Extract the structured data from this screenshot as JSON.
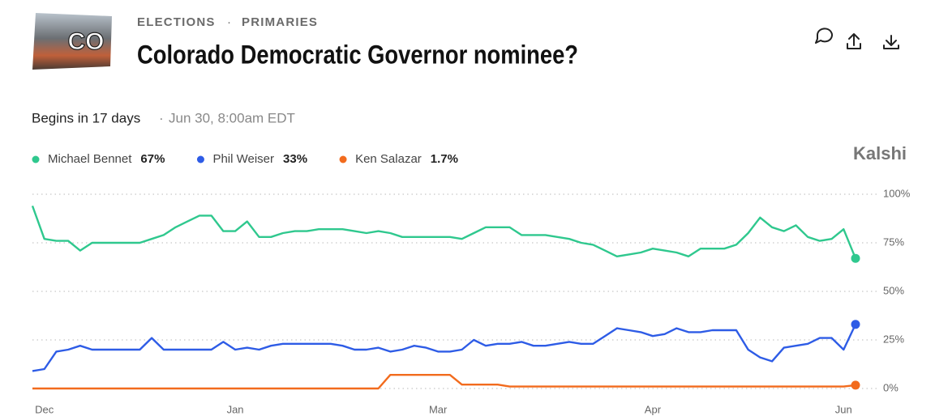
{
  "header": {
    "category": "ELECTIONS",
    "subcategory": "PRIMARIES",
    "title": "Colorado Democratic Governor nominee?",
    "image_label": "CO",
    "begins": "Begins in 17 days",
    "date": "Jun 30, 8:00am EDT",
    "brand": "Kalshi"
  },
  "chart_data": {
    "type": "line",
    "categories": [
      null,
      "Dec",
      null,
      null,
      null,
      null,
      null,
      null,
      null,
      null,
      null,
      null,
      null,
      null,
      null,
      null,
      null,
      "Jan",
      null,
      null,
      null,
      null,
      null,
      null,
      null,
      null,
      null,
      null,
      null,
      null,
      null,
      null,
      null,
      null,
      "Mar",
      null,
      null,
      null,
      null,
      null,
      null,
      null,
      null,
      null,
      null,
      null,
      null,
      null,
      null,
      null,
      null,
      null,
      "Apr",
      null,
      null,
      null,
      null,
      null,
      null,
      null,
      null,
      null,
      null,
      null,
      null,
      null,
      null,
      null,
      "Jun",
      null
    ],
    "series": [
      {
        "name": "Michael Bennet",
        "legend_value": "67%",
        "color": "#2fc88e",
        "values": [
          94,
          77,
          76,
          76,
          71,
          75,
          75,
          75,
          75,
          75,
          77,
          79,
          83,
          86,
          89,
          89,
          81,
          81,
          86,
          78,
          78,
          80,
          81,
          81,
          82,
          82,
          82,
          81,
          80,
          81,
          80,
          78,
          78,
          78,
          78,
          78,
          77,
          80,
          83,
          83,
          83,
          79,
          79,
          79,
          78,
          77,
          75,
          74,
          71,
          68,
          69,
          70,
          72,
          71,
          70,
          68,
          72,
          72,
          72,
          74,
          80,
          88,
          83,
          81,
          84,
          78,
          76,
          77,
          82,
          67
        ]
      },
      {
        "name": "Phil Weiser",
        "legend_value": "33%",
        "color": "#2e5ce6",
        "values": [
          9,
          10,
          19,
          20,
          22,
          20,
          20,
          20,
          20,
          20,
          26,
          20,
          20,
          20,
          20,
          20,
          24,
          20,
          21,
          20,
          22,
          23,
          23,
          23,
          23,
          23,
          22,
          20,
          20,
          21,
          19,
          20,
          22,
          21,
          19,
          19,
          20,
          25,
          22,
          23,
          23,
          24,
          22,
          22,
          23,
          24,
          23,
          23,
          27,
          31,
          30,
          29,
          27,
          28,
          31,
          29,
          29,
          30,
          30,
          30,
          20,
          16,
          14,
          21,
          22,
          23,
          26,
          26,
          20,
          33
        ]
      },
      {
        "name": "Ken Salazar",
        "legend_value": "1.7%",
        "color": "#f26b1d",
        "values": [
          0,
          0,
          0,
          0,
          0,
          0,
          0,
          0,
          0,
          0,
          0,
          0,
          0,
          0,
          0,
          0,
          0,
          0,
          0,
          0,
          0,
          0,
          0,
          0,
          0,
          0,
          0,
          0,
          0,
          0,
          7,
          7,
          7,
          7,
          7,
          7,
          2,
          2,
          2,
          2,
          1,
          1,
          1,
          1,
          1,
          1,
          1,
          1,
          1,
          1,
          1,
          1,
          1,
          1,
          1,
          1,
          1,
          1,
          1,
          1,
          1,
          1,
          1,
          1,
          1,
          1,
          1,
          1,
          1,
          1.7
        ]
      }
    ],
    "ylim": [
      0,
      100
    ],
    "yticks": [
      {
        "value": 0,
        "label": "0%"
      },
      {
        "value": 25,
        "label": "25%"
      },
      {
        "value": 50,
        "label": "50%"
      },
      {
        "value": 75,
        "label": "75%"
      },
      {
        "value": 100,
        "label": "100%"
      }
    ],
    "grid": true
  }
}
